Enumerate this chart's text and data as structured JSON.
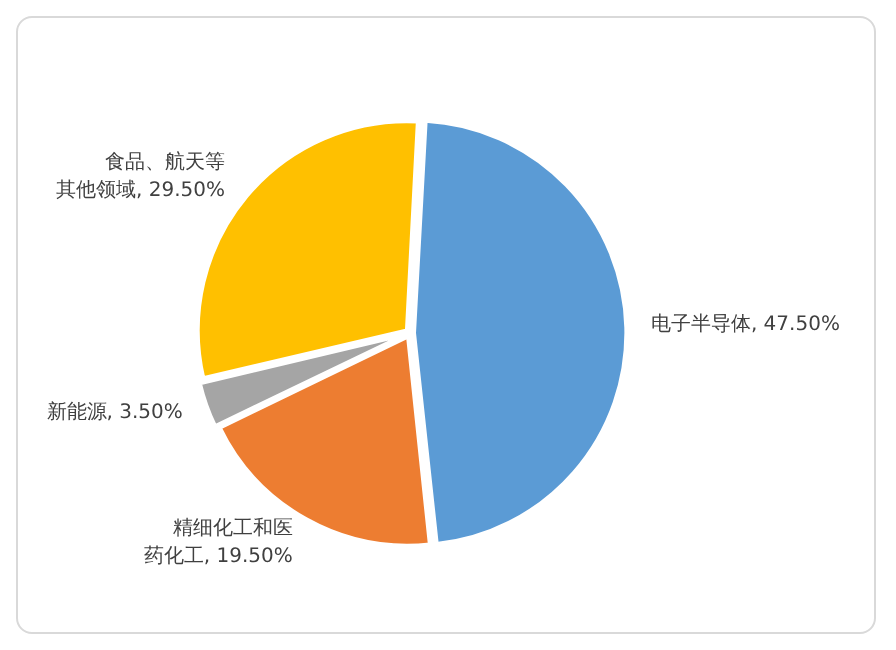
{
  "chart_data": {
    "type": "pie",
    "categories": [
      "电子半导体",
      "精细化工和医药化工",
      "新能源",
      "食品、航天等其他领域"
    ],
    "values": [
      47.5,
      19.5,
      3.5,
      29.5
    ],
    "colors": [
      "#5b9bd5",
      "#ed7d31",
      "#a5a5a5",
      "#ffc000"
    ],
    "value_labels": [
      "47.50%",
      "19.50%",
      "3.50%",
      "29.50%"
    ],
    "legend": false
  }
}
